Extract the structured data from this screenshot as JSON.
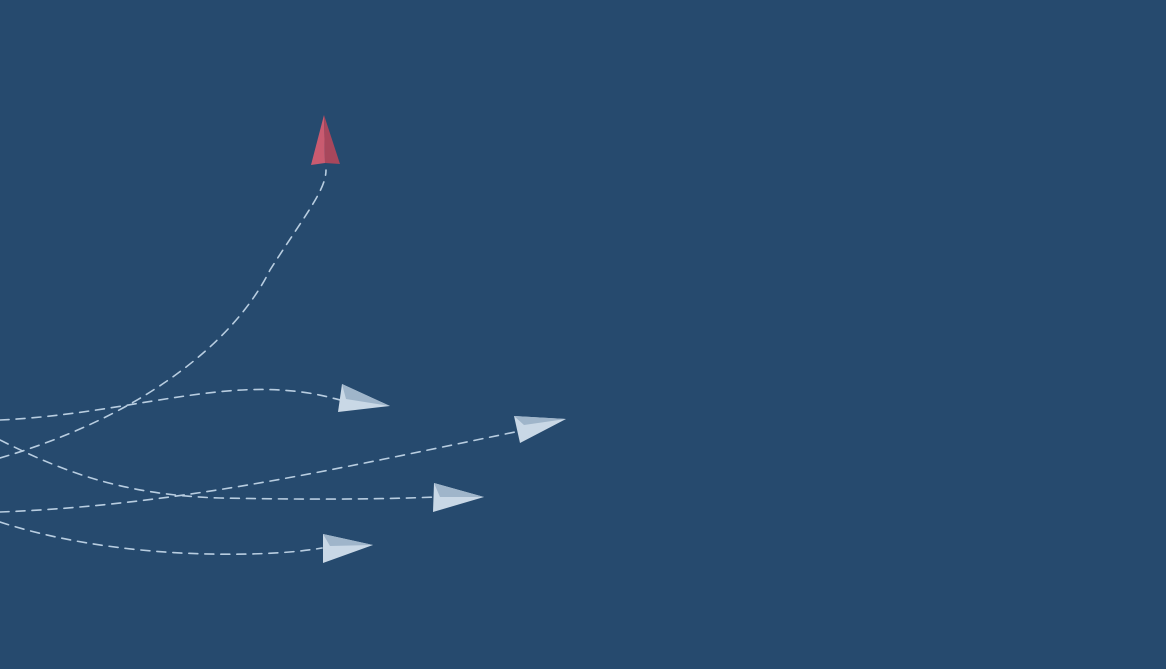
{
  "scene": {
    "background_color": "#264a6e",
    "trail_color": "#b8cde0",
    "leader_plane": {
      "icon": "paper-plane-icon",
      "color": "#c95b70",
      "shade_color": "#a8475c",
      "direction": "up"
    },
    "follower_planes": [
      {
        "icon": "paper-plane-icon",
        "color": "#c9d8e6",
        "shade_color": "#9fb5ca",
        "direction": "right"
      },
      {
        "icon": "paper-plane-icon",
        "color": "#c9d8e6",
        "shade_color": "#9fb5ca",
        "direction": "right"
      },
      {
        "icon": "paper-plane-icon",
        "color": "#c9d8e6",
        "shade_color": "#9fb5ca",
        "direction": "right"
      },
      {
        "icon": "paper-plane-icon",
        "color": "#c9d8e6",
        "shade_color": "#9fb5ca",
        "direction": "right"
      }
    ]
  }
}
